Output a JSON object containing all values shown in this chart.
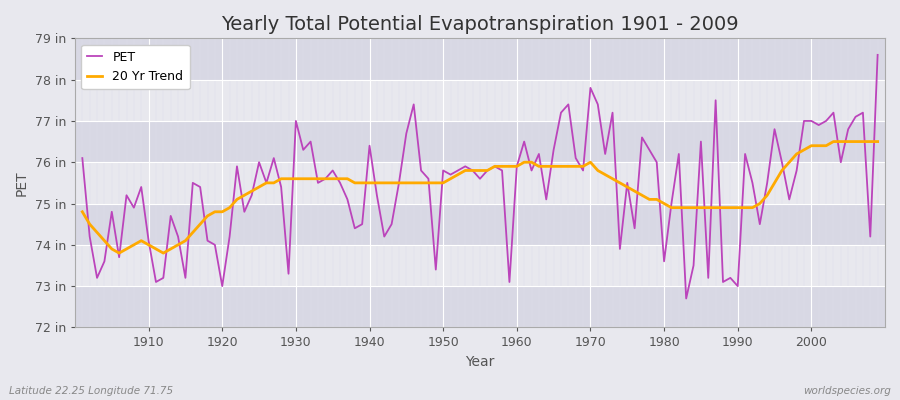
{
  "title": "Yearly Total Potential Evapotranspiration 1901 - 2009",
  "xlabel": "Year",
  "ylabel": "PET",
  "lat_lon_label": "Latitude 22.25 Longitude 71.75",
  "watermark": "worldspecies.org",
  "years": [
    1901,
    1902,
    1903,
    1904,
    1905,
    1906,
    1907,
    1908,
    1909,
    1910,
    1911,
    1912,
    1913,
    1914,
    1915,
    1916,
    1917,
    1918,
    1919,
    1920,
    1921,
    1922,
    1923,
    1924,
    1925,
    1926,
    1927,
    1928,
    1929,
    1930,
    1931,
    1932,
    1933,
    1934,
    1935,
    1936,
    1937,
    1938,
    1939,
    1940,
    1941,
    1942,
    1943,
    1944,
    1945,
    1946,
    1947,
    1948,
    1949,
    1950,
    1951,
    1952,
    1953,
    1954,
    1955,
    1956,
    1957,
    1958,
    1959,
    1960,
    1961,
    1962,
    1963,
    1964,
    1965,
    1966,
    1967,
    1968,
    1969,
    1970,
    1971,
    1972,
    1973,
    1974,
    1975,
    1976,
    1977,
    1978,
    1979,
    1980,
    1981,
    1982,
    1983,
    1984,
    1985,
    1986,
    1987,
    1988,
    1989,
    1990,
    1991,
    1992,
    1993,
    1994,
    1995,
    1996,
    1997,
    1998,
    1999,
    2000,
    2001,
    2002,
    2003,
    2004,
    2005,
    2006,
    2007,
    2008,
    2009
  ],
  "pet": [
    76.1,
    74.2,
    73.2,
    73.6,
    74.8,
    73.7,
    75.2,
    74.9,
    75.4,
    74.1,
    73.1,
    73.2,
    74.7,
    74.2,
    73.2,
    75.5,
    75.4,
    74.1,
    74.0,
    73.0,
    74.2,
    75.9,
    74.8,
    75.2,
    76.0,
    75.5,
    76.1,
    75.4,
    73.3,
    77.0,
    76.3,
    76.5,
    75.5,
    75.6,
    75.8,
    75.5,
    75.1,
    74.4,
    74.5,
    76.4,
    75.2,
    74.2,
    74.5,
    75.5,
    76.7,
    77.4,
    75.8,
    75.6,
    73.4,
    75.8,
    75.7,
    75.8,
    75.9,
    75.8,
    75.6,
    75.8,
    75.9,
    75.8,
    73.1,
    75.9,
    76.5,
    75.8,
    76.2,
    75.1,
    76.3,
    77.2,
    77.4,
    76.1,
    75.8,
    77.8,
    77.4,
    76.2,
    77.2,
    73.9,
    75.5,
    74.4,
    76.6,
    76.3,
    76.0,
    73.6,
    75.0,
    76.2,
    72.7,
    73.5,
    76.5,
    73.2,
    77.5,
    73.1,
    73.2,
    73.0,
    76.2,
    75.5,
    74.5,
    75.5,
    76.8,
    76.0,
    75.1,
    75.8,
    77.0,
    77.0,
    76.9,
    77.0,
    77.2,
    76.0,
    76.8,
    77.1,
    77.2,
    74.2,
    78.6
  ],
  "trend": [
    74.8,
    74.5,
    74.3,
    74.1,
    73.9,
    73.8,
    73.9,
    74.0,
    74.1,
    74.0,
    73.9,
    73.8,
    73.9,
    74.0,
    74.1,
    74.3,
    74.5,
    74.7,
    74.8,
    74.8,
    74.9,
    75.1,
    75.2,
    75.3,
    75.4,
    75.5,
    75.5,
    75.6,
    75.6,
    75.6,
    75.6,
    75.6,
    75.6,
    75.6,
    75.6,
    75.6,
    75.6,
    75.5,
    75.5,
    75.5,
    75.5,
    75.5,
    75.5,
    75.5,
    75.5,
    75.5,
    75.5,
    75.5,
    75.5,
    75.5,
    75.6,
    75.7,
    75.8,
    75.8,
    75.8,
    75.8,
    75.9,
    75.9,
    75.9,
    75.9,
    76.0,
    76.0,
    75.9,
    75.9,
    75.9,
    75.9,
    75.9,
    75.9,
    75.9,
    76.0,
    75.8,
    75.7,
    75.6,
    75.5,
    75.4,
    75.3,
    75.2,
    75.1,
    75.1,
    75.0,
    74.9,
    74.9,
    74.9,
    74.9,
    74.9,
    74.9,
    74.9,
    74.9,
    74.9,
    74.9,
    74.9,
    74.9,
    75.0,
    75.2,
    75.5,
    75.8,
    76.0,
    76.2,
    76.3,
    76.4,
    76.4,
    76.4,
    76.5,
    76.5,
    76.5,
    76.5,
    76.5,
    76.5,
    76.5
  ],
  "pet_color": "#bb44bb",
  "trend_color": "#ffaa00",
  "bg_light": "#e8e8ee",
  "bg_dark": "#d8d8e4",
  "grid_color": "#ffffff",
  "ylim": [
    72,
    79
  ],
  "yticks": [
    72,
    73,
    74,
    75,
    76,
    77,
    78,
    79
  ],
  "ytick_labels": [
    "72 in",
    "73 in",
    "74 in",
    "75 in",
    "76 in",
    "77 in",
    "78 in",
    "79 in"
  ],
  "xticks": [
    1910,
    1920,
    1930,
    1940,
    1950,
    1960,
    1970,
    1980,
    1990,
    2000
  ],
  "xlim": [
    1900,
    2010
  ],
  "title_fontsize": 14,
  "axis_label_fontsize": 10,
  "tick_fontsize": 9,
  "legend_fontsize": 9,
  "pet_linewidth": 1.3,
  "trend_linewidth": 2.0
}
